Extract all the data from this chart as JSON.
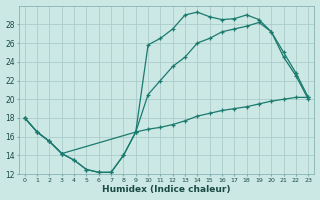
{
  "xlabel": "Humidex (Indice chaleur)",
  "bg_color": "#cce8e4",
  "grid_color": "#aaccca",
  "line_color": "#1a7a6e",
  "xlim": [
    -0.5,
    23.5
  ],
  "ylim": [
    12,
    30
  ],
  "yticks": [
    12,
    14,
    16,
    18,
    20,
    22,
    24,
    26,
    28
  ],
  "xticks": [
    0,
    1,
    2,
    3,
    4,
    5,
    6,
    7,
    8,
    9,
    10,
    11,
    12,
    13,
    14,
    15,
    16,
    17,
    18,
    19,
    20,
    21,
    22,
    23
  ],
  "line1_x": [
    0,
    1,
    2,
    3,
    4,
    5,
    6,
    7,
    8,
    9,
    10,
    11,
    12,
    13,
    14,
    15,
    16,
    17,
    18,
    19,
    20,
    21,
    22,
    23
  ],
  "line1_y": [
    18.0,
    16.5,
    15.5,
    14.2,
    13.5,
    12.5,
    12.2,
    12.2,
    14.0,
    16.5,
    25.8,
    26.5,
    27.5,
    29.0,
    29.3,
    28.8,
    28.5,
    28.6,
    29.0,
    28.5,
    27.2,
    24.5,
    22.5,
    20.0
  ],
  "line2_x": [
    0,
    1,
    2,
    3,
    9,
    10,
    11,
    12,
    13,
    14,
    15,
    16,
    17,
    18,
    19,
    20,
    21,
    22,
    23
  ],
  "line2_y": [
    18.0,
    16.5,
    15.5,
    14.2,
    16.5,
    20.5,
    22.0,
    23.5,
    24.5,
    26.0,
    26.5,
    27.2,
    27.5,
    27.8,
    28.2,
    27.2,
    25.0,
    22.8,
    20.2
  ],
  "line3_x": [
    0,
    1,
    2,
    3,
    4,
    5,
    6,
    7,
    8,
    9,
    10,
    11,
    12,
    13,
    14,
    15,
    16,
    17,
    18,
    19,
    20,
    21,
    22,
    23
  ],
  "line3_y": [
    18.0,
    16.5,
    15.5,
    14.2,
    13.5,
    12.5,
    12.2,
    12.2,
    14.0,
    16.5,
    16.8,
    17.0,
    17.3,
    17.7,
    18.2,
    18.5,
    18.8,
    19.0,
    19.2,
    19.5,
    19.8,
    20.0,
    20.2,
    20.2
  ]
}
